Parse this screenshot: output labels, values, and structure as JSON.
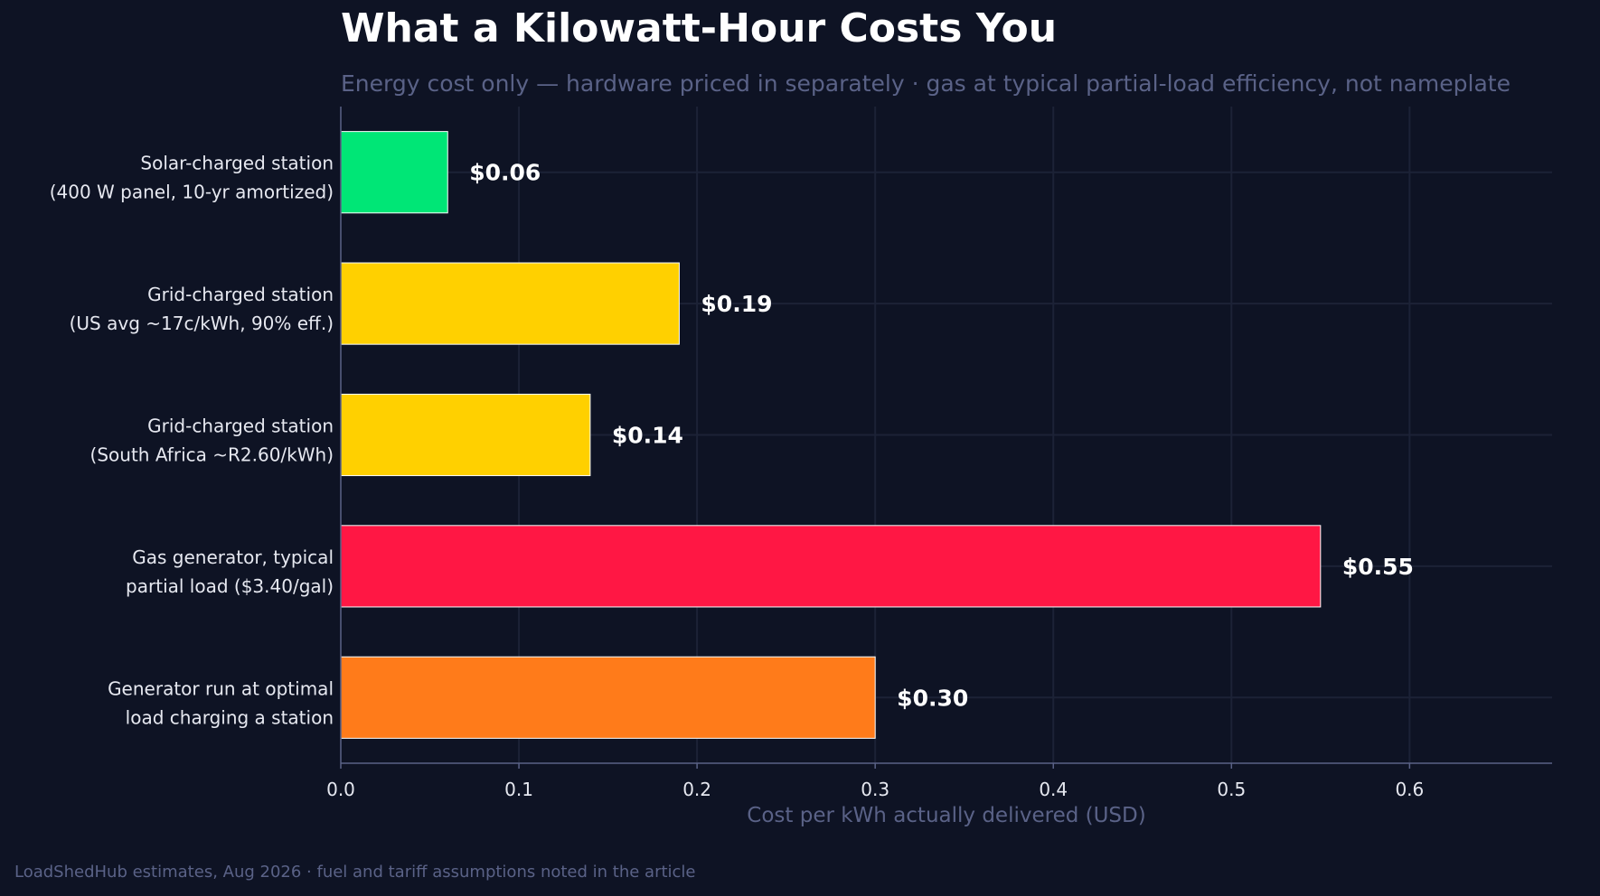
{
  "chart_data": {
    "type": "bar",
    "orientation": "horizontal",
    "title": "What a Kilowatt-Hour Costs You",
    "subtitle": "Energy cost only — hardware priced in separately · gas at typical partial-load efficiency, not nameplate",
    "xlabel": "Cost per kWh actually delivered (USD)",
    "ylabel": "",
    "xlim": [
      0,
      0.68
    ],
    "xticks": [
      "0.0",
      "0.1",
      "0.2",
      "0.3",
      "0.4",
      "0.5",
      "0.6"
    ],
    "grid": true,
    "categories": [
      [
        "Solar-charged station",
        "(400 W panel, 10-yr amortized)"
      ],
      [
        "Grid-charged station",
        "(US avg ~17c/kWh, 90% eff.)"
      ],
      [
        "Grid-charged station",
        "(South Africa ~R2.60/kWh)"
      ],
      [
        "Gas generator, typical",
        "partial load ($3.40/gal)"
      ],
      [
        "Generator run at optimal",
        "load charging a station"
      ]
    ],
    "values": [
      0.06,
      0.19,
      0.14,
      0.55,
      0.3
    ],
    "value_labels": [
      "$0.06",
      "$0.19",
      "$0.14",
      "$0.55",
      "$0.30"
    ],
    "colors": [
      "#00e676",
      "#ffd000",
      "#ffd000",
      "#ff1744",
      "#ff7b1a"
    ]
  },
  "footer": "LoadShedHub estimates, Aug 2026 · fuel and tariff assumptions noted in the article",
  "colors": {
    "background": "#0e1324",
    "grid": "#1c2236",
    "axis": "#5a6287",
    "muted_text": "#5a6287"
  }
}
